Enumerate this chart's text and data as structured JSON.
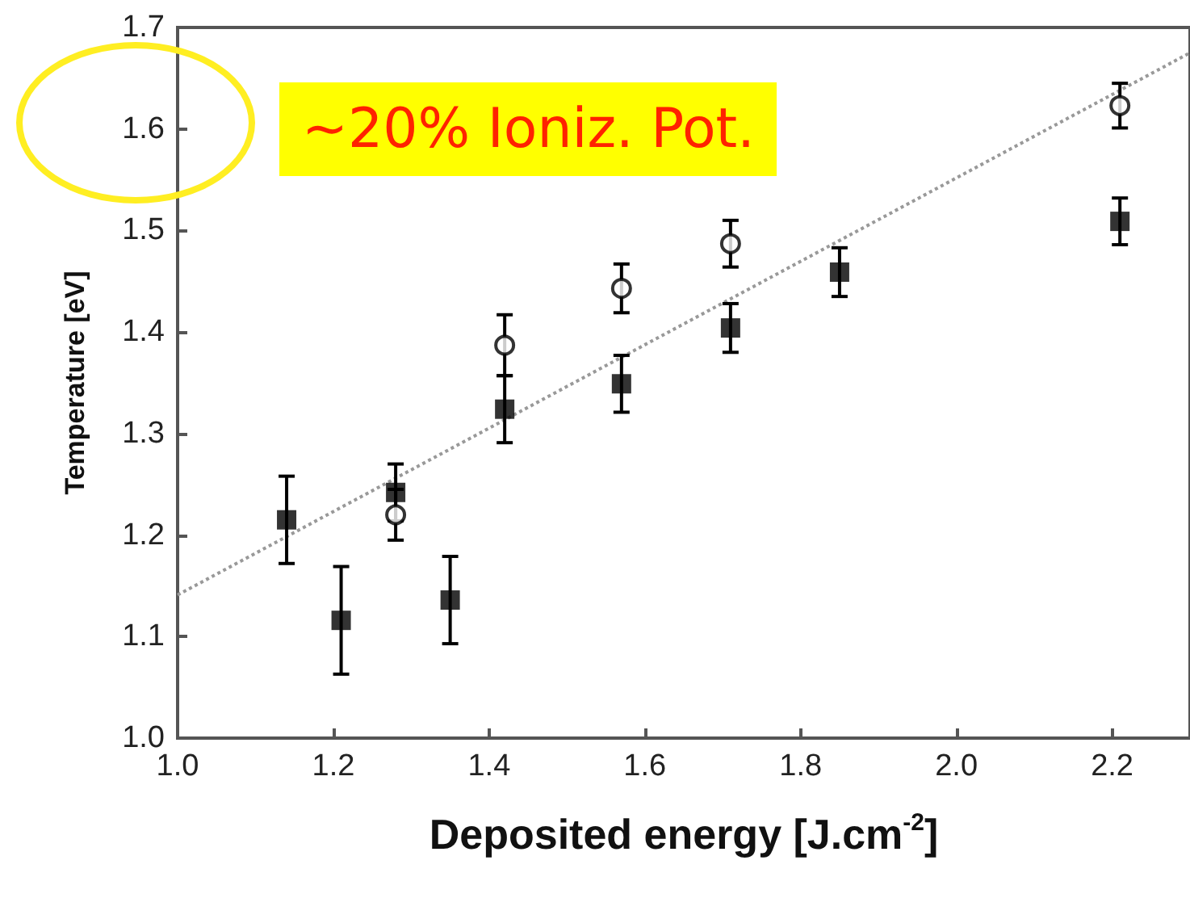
{
  "chart_data": {
    "type": "scatter",
    "xlabel": "Deposited energy [J.cm$^{-2}$]",
    "ylabel": "Temperature [eV]",
    "annotations": [
      "~20% Ioniz. Pot."
    ],
    "xlim": [
      1.0,
      2.3
    ],
    "xticks": [
      {
        "value": 1.0,
        "label": "1.0"
      },
      {
        "value": 1.2,
        "label": "1.2"
      },
      {
        "value": 1.4,
        "label": "1.4"
      },
      {
        "value": 1.6,
        "label": "1.6"
      },
      {
        "value": 1.8,
        "label": "1.8"
      },
      {
        "value": 2.0,
        "label": "2.0"
      },
      {
        "value": 2.2,
        "label": "2.2"
      }
    ],
    "ylim": [
      1.0,
      1.7
    ],
    "yticks": [
      {
        "value": 1.0,
        "label": "1.0"
      },
      {
        "value": 1.1,
        "label": "1.1"
      },
      {
        "value": 1.2,
        "label": "1.2"
      },
      {
        "value": 1.3,
        "label": "1.3"
      },
      {
        "value": 1.4,
        "label": "1.4"
      },
      {
        "value": 1.5,
        "label": "1.5"
      },
      {
        "value": 1.6,
        "label": "1.6"
      },
      {
        "value": 1.7,
        "label": "1.7"
      }
    ],
    "series": [
      {
        "type": "scatter",
        "marker": "square",
        "color": "#000000",
        "x": [
          1.14,
          1.21,
          1.28,
          1.35,
          1.42,
          1.57,
          1.71,
          1.85,
          2.21
        ],
        "values": [
          1.215,
          1.116,
          1.242,
          1.136,
          1.324,
          1.349,
          1.404,
          1.459,
          1.509
        ],
        "errors": [
          0.043,
          0.053,
          0.028,
          0.043,
          0.033,
          0.028,
          0.024,
          0.024,
          0.023
        ]
      },
      {
        "type": "scatter",
        "marker": "circle",
        "color": "#000000",
        "x": [
          1.28,
          1.42,
          1.57,
          1.71,
          1.85,
          2.21
        ],
        "values": [
          1.22,
          1.387,
          1.443,
          1.487,
          null,
          1.623
        ],
        "errors": [
          0.025,
          0.03,
          0.024,
          0.023,
          null,
          0.022
        ]
      },
      {
        "type": "line",
        "marker": "none",
        "line_style": "dotted",
        "color": "#999999",
        "x": [
          1.0,
          2.3
        ],
        "values": [
          1.141,
          1.675
        ]
      }
    ]
  }
}
